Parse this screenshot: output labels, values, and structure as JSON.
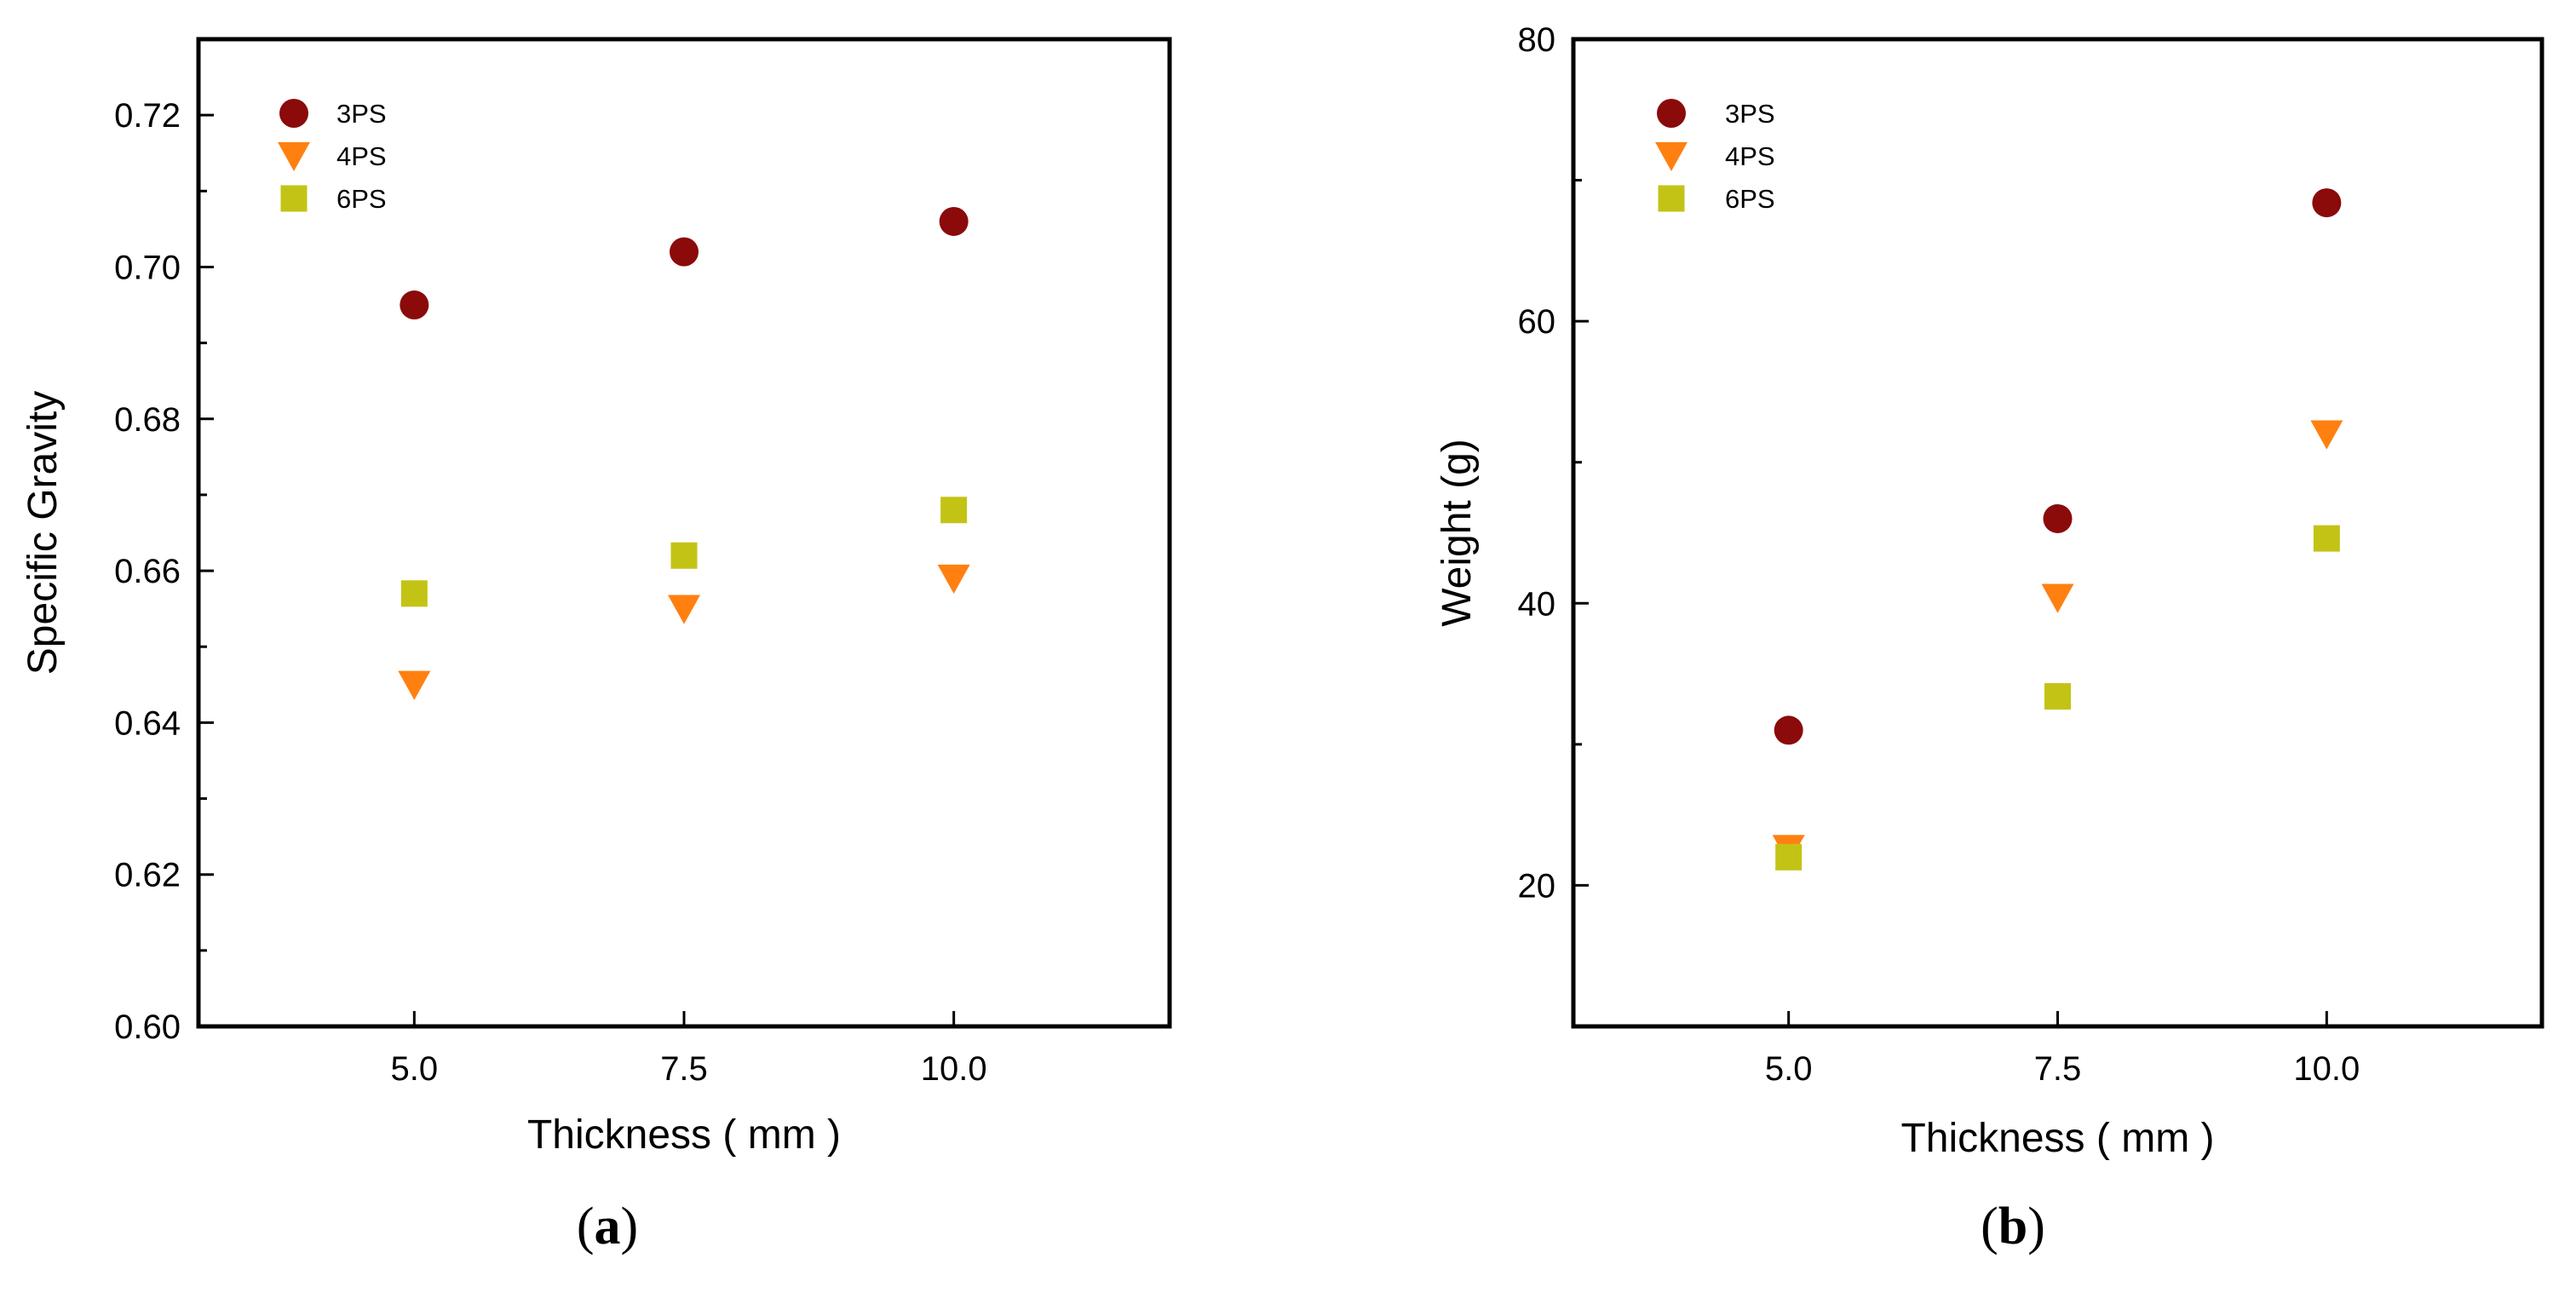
{
  "chart_data": [
    {
      "type": "scatter",
      "panel_label": "a",
      "xlabel": "Thickness ( mm )",
      "ylabel": "Specific Gravity",
      "xlim": [
        3.0,
        12.0
      ],
      "ylim": [
        0.6,
        0.73
      ],
      "x_ticks": [
        5.0,
        7.5,
        10.0
      ],
      "x_tick_labels": [
        "5.0",
        "7.5",
        "10.0"
      ],
      "y_ticks": [
        0.6,
        0.62,
        0.64,
        0.66,
        0.68,
        0.7,
        0.72
      ],
      "y_tick_labels": [
        "0.60",
        "0.62",
        "0.64",
        "0.66",
        "0.68",
        "0.70",
        "0.72"
      ],
      "y_minor_ticks": [
        0.61,
        0.63,
        0.65,
        0.67,
        0.69,
        0.71
      ],
      "grid": false,
      "legend_position": "top-left",
      "series": [
        {
          "name": "3PS",
          "marker": "circle",
          "color": "#8B0A0A",
          "x": [
            5.0,
            7.5,
            10.0
          ],
          "values": [
            0.695,
            0.702,
            0.706
          ]
        },
        {
          "name": "4PS",
          "marker": "triangle-down",
          "color": "#FF8011",
          "x": [
            5.0,
            7.5,
            10.0
          ],
          "values": [
            0.645,
            0.655,
            0.659
          ]
        },
        {
          "name": "6PS",
          "marker": "square",
          "color": "#C3C316",
          "x": [
            5.0,
            7.5,
            10.0
          ],
          "values": [
            0.657,
            0.662,
            0.668
          ]
        }
      ]
    },
    {
      "type": "scatter",
      "panel_label": "b",
      "xlabel": "Thickness ( mm )",
      "ylabel": "Weight (g)",
      "xlim": [
        3.0,
        12.0
      ],
      "ylim": [
        10,
        80
      ],
      "x_ticks": [
        5.0,
        7.5,
        10.0
      ],
      "x_tick_labels": [
        "5.0",
        "7.5",
        "10.0"
      ],
      "y_ticks": [
        20,
        40,
        60,
        80
      ],
      "y_tick_labels": [
        "20",
        "40",
        "60",
        "80"
      ],
      "y_minor_ticks": [
        30,
        50,
        70
      ],
      "grid": false,
      "legend_position": "top-left",
      "series": [
        {
          "name": "3PS",
          "marker": "circle",
          "color": "#8B0A0A",
          "x": [
            5.0,
            7.5,
            10.0
          ],
          "values": [
            31.0,
            46.0,
            68.4
          ]
        },
        {
          "name": "4PS",
          "marker": "triangle-down",
          "color": "#FF8011",
          "x": [
            5.0,
            7.5,
            10.0
          ],
          "values": [
            22.6,
            40.4,
            52.0
          ]
        },
        {
          "name": "6PS",
          "marker": "square",
          "color": "#C3C316",
          "x": [
            5.0,
            7.5,
            10.0
          ],
          "values": [
            22.0,
            33.4,
            44.6
          ]
        }
      ]
    }
  ]
}
